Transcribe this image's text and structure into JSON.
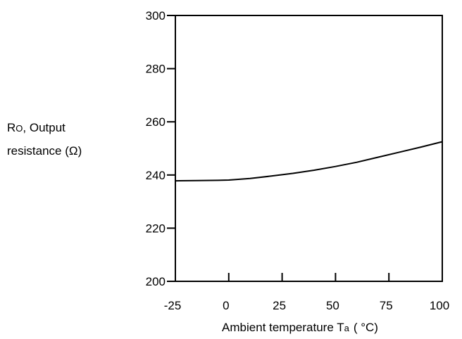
{
  "chart_data": {
    "type": "line",
    "title": "",
    "xlabel": {
      "main": "Ambient temperature T",
      "sub": "a",
      "unit": "( °C)"
    },
    "ylabel": {
      "line1_main": "R",
      "line1_sub": "O",
      "line1_rest": ", Output",
      "line2": "resistance (Ω)"
    },
    "xlim": [
      -25,
      100
    ],
    "ylim": [
      200,
      300
    ],
    "xticks": [
      -25,
      0,
      25,
      50,
      75,
      100
    ],
    "yticks": [
      200,
      220,
      240,
      260,
      280,
      300
    ],
    "grid": false,
    "series": [
      {
        "x": [
          -25,
          -15,
          -5,
          0,
          10,
          20,
          30,
          40,
          50,
          60,
          70,
          80,
          90,
          100
        ],
        "y": [
          237.8,
          237.9,
          238.0,
          238.1,
          238.7,
          239.6,
          240.6,
          241.8,
          243.2,
          244.8,
          246.7,
          248.6,
          250.5,
          252.5
        ]
      }
    ]
  }
}
